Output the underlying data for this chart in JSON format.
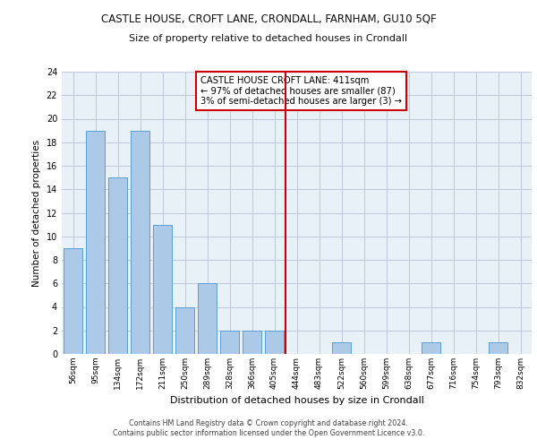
{
  "title": "CASTLE HOUSE, CROFT LANE, CRONDALL, FARNHAM, GU10 5QF",
  "subtitle": "Size of property relative to detached houses in Crondall",
  "xlabel": "Distribution of detached houses by size in Crondall",
  "ylabel": "Number of detached properties",
  "categories": [
    "56sqm",
    "95sqm",
    "134sqm",
    "172sqm",
    "211sqm",
    "250sqm",
    "289sqm",
    "328sqm",
    "366sqm",
    "405sqm",
    "444sqm",
    "483sqm",
    "522sqm",
    "560sqm",
    "599sqm",
    "638sqm",
    "677sqm",
    "716sqm",
    "754sqm",
    "793sqm",
    "832sqm"
  ],
  "values": [
    9,
    19,
    15,
    19,
    11,
    4,
    6,
    2,
    2,
    2,
    0,
    0,
    1,
    0,
    0,
    0,
    1,
    0,
    0,
    1,
    0
  ],
  "bar_color": "#adc9e8",
  "bar_edge_color": "#5a9fd4",
  "vline_x": 9.5,
  "vline_color": "#cc0000",
  "annotation_text": "CASTLE HOUSE CROFT LANE: 411sqm\n← 97% of detached houses are smaller (87)\n3% of semi-detached houses are larger (3) →",
  "annotation_box_color": "#cc0000",
  "ylim": [
    0,
    24
  ],
  "yticks": [
    0,
    2,
    4,
    6,
    8,
    10,
    12,
    14,
    16,
    18,
    20,
    22,
    24
  ],
  "background_color": "#e8f0f8",
  "footer_line1": "Contains HM Land Registry data © Crown copyright and database right 2024.",
  "footer_line2": "Contains public sector information licensed under the Open Government Licence v3.0."
}
